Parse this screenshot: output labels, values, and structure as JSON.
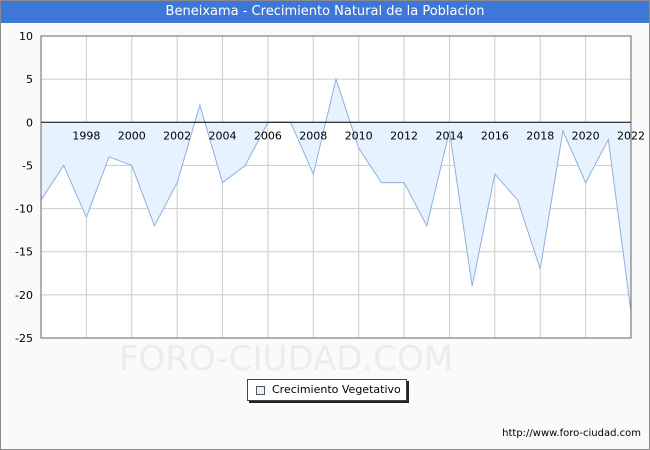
{
  "window": {
    "title": "Beneixama - Crecimiento Natural de la Poblacion"
  },
  "watermark": "FORO-CIUDAD.COM",
  "source": "http://www.foro-ciudad.com",
  "legend": {
    "label": "Crecimiento Vegetativo"
  },
  "colors": {
    "title_bar": "#3d78d8",
    "area_fill": "#e6f2ff",
    "line": "#8fb0dc",
    "grid": "#cccccc"
  },
  "chart_data": {
    "type": "area",
    "title": "Beneixama - Crecimiento Natural de la Poblacion",
    "xlabel": "",
    "ylabel": "",
    "xlim": [
      1996,
      2022
    ],
    "ylim": [
      -25,
      10
    ],
    "yticks": [
      10,
      5,
      0,
      -5,
      -10,
      -15,
      -20,
      -25
    ],
    "xticks": [
      1998,
      2000,
      2002,
      2004,
      2006,
      2008,
      2010,
      2012,
      2014,
      2016,
      2018,
      2020,
      2022
    ],
    "grid": true,
    "legend_position": "bottom-center",
    "series": [
      {
        "name": "Crecimiento Vegetativo",
        "x": [
          1996,
          1997,
          1998,
          1999,
          2000,
          2001,
          2002,
          2003,
          2004,
          2005,
          2006,
          2007,
          2008,
          2009,
          2010,
          2011,
          2012,
          2013,
          2014,
          2015,
          2016,
          2017,
          2018,
          2019,
          2020,
          2021,
          2022
        ],
        "values": [
          -9,
          -5,
          -11,
          -4,
          -5,
          -12,
          -7,
          2,
          -7,
          -5,
          0,
          0,
          -6,
          5,
          -3,
          -7,
          -7,
          -12,
          -1,
          -19,
          -6,
          -9,
          -17,
          -1,
          -7,
          -2,
          -22
        ]
      }
    ]
  }
}
